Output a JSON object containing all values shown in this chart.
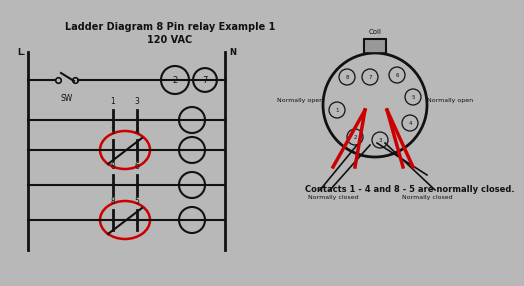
{
  "title": "Ladder Diagram 8 Pin relay Example 1",
  "subtitle": "120 VAC",
  "bg_color": "#b8b8b8",
  "line_color": "#111111",
  "red_color": "#cc0000",
  "text_color": "#111111",
  "contact_note": "Contacts 1 - 4 and 8 - 5 are normally closed.",
  "L_label": "L.",
  "N_label": "N",
  "SW_label": "SW",
  "Coil_label": "Coil",
  "nc_label": "Normally closed",
  "no_label": "Normally open",
  "pin2_label": "2",
  "pin3_label": "3",
  "pin4_label": "4",
  "pin1_label": "1",
  "pin5_label": "5",
  "pin6_label": "6",
  "pin7_label": "7",
  "pin8_label": "8"
}
